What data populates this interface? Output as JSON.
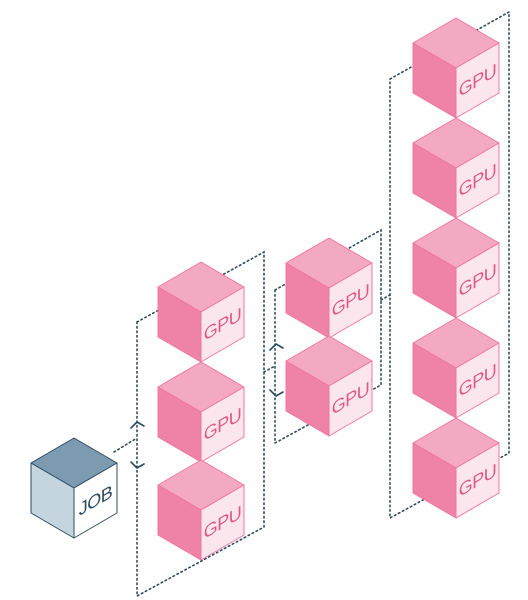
{
  "diagram": {
    "job_label": "JOB",
    "gpu_label": "GPU",
    "colors": {
      "gpu_top": "#f4a9c2",
      "gpu_left": "#ee82a7",
      "gpu_right": "#fbe6ee",
      "gpu_text": "#e05785",
      "gpu_edge": "#f0779f",
      "job_top": "#7c9bb1",
      "job_left": "#c5d5df",
      "job_right": "#ffffff",
      "job_edge": "#2d4b60",
      "job_text": "#2d4b60",
      "dotted_line": "#2d4b60",
      "background": "#ffffff"
    },
    "columns": [
      {
        "name": "column-1",
        "gpu_count": 3
      },
      {
        "name": "column-2",
        "gpu_count": 2
      },
      {
        "name": "column-3",
        "gpu_count": 5
      }
    ]
  }
}
